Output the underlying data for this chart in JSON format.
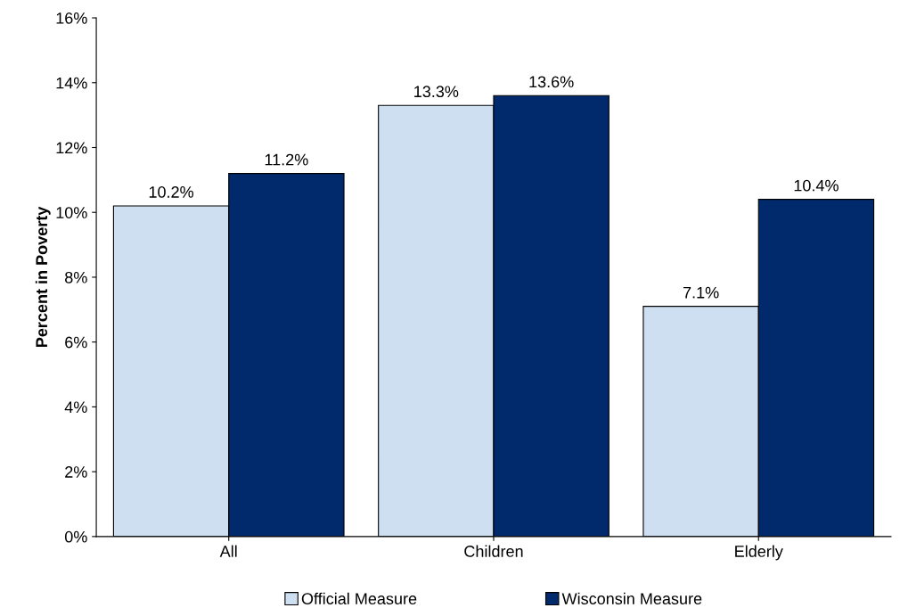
{
  "chart_data": {
    "type": "bar",
    "ylabel": "Percent in Poverty",
    "categories": [
      "All",
      "Children",
      "Elderly"
    ],
    "series": [
      {
        "name": "Official Measure",
        "color": "#cfdff2",
        "values": [
          10.2,
          13.3,
          7.1
        ],
        "value_labels": [
          "10.2%",
          "13.3%",
          "7.1%"
        ]
      },
      {
        "name": "Wisconsin Measure",
        "color": "#002a6c",
        "values": [
          11.2,
          13.6,
          10.4
        ],
        "value_labels": [
          "11.2%",
          "13.6%",
          "10.4%"
        ]
      }
    ],
    "ylim": [
      0,
      16
    ],
    "yticks": [
      {
        "value": 0,
        "label": "0%"
      },
      {
        "value": 2,
        "label": "2%"
      },
      {
        "value": 4,
        "label": "4%"
      },
      {
        "value": 6,
        "label": "6%"
      },
      {
        "value": 8,
        "label": "8%"
      },
      {
        "value": 10,
        "label": "10%"
      },
      {
        "value": 12,
        "label": "12%"
      },
      {
        "value": 14,
        "label": "14%"
      },
      {
        "value": 16,
        "label": "16%"
      }
    ],
    "grid": false,
    "legend": "bottom"
  }
}
